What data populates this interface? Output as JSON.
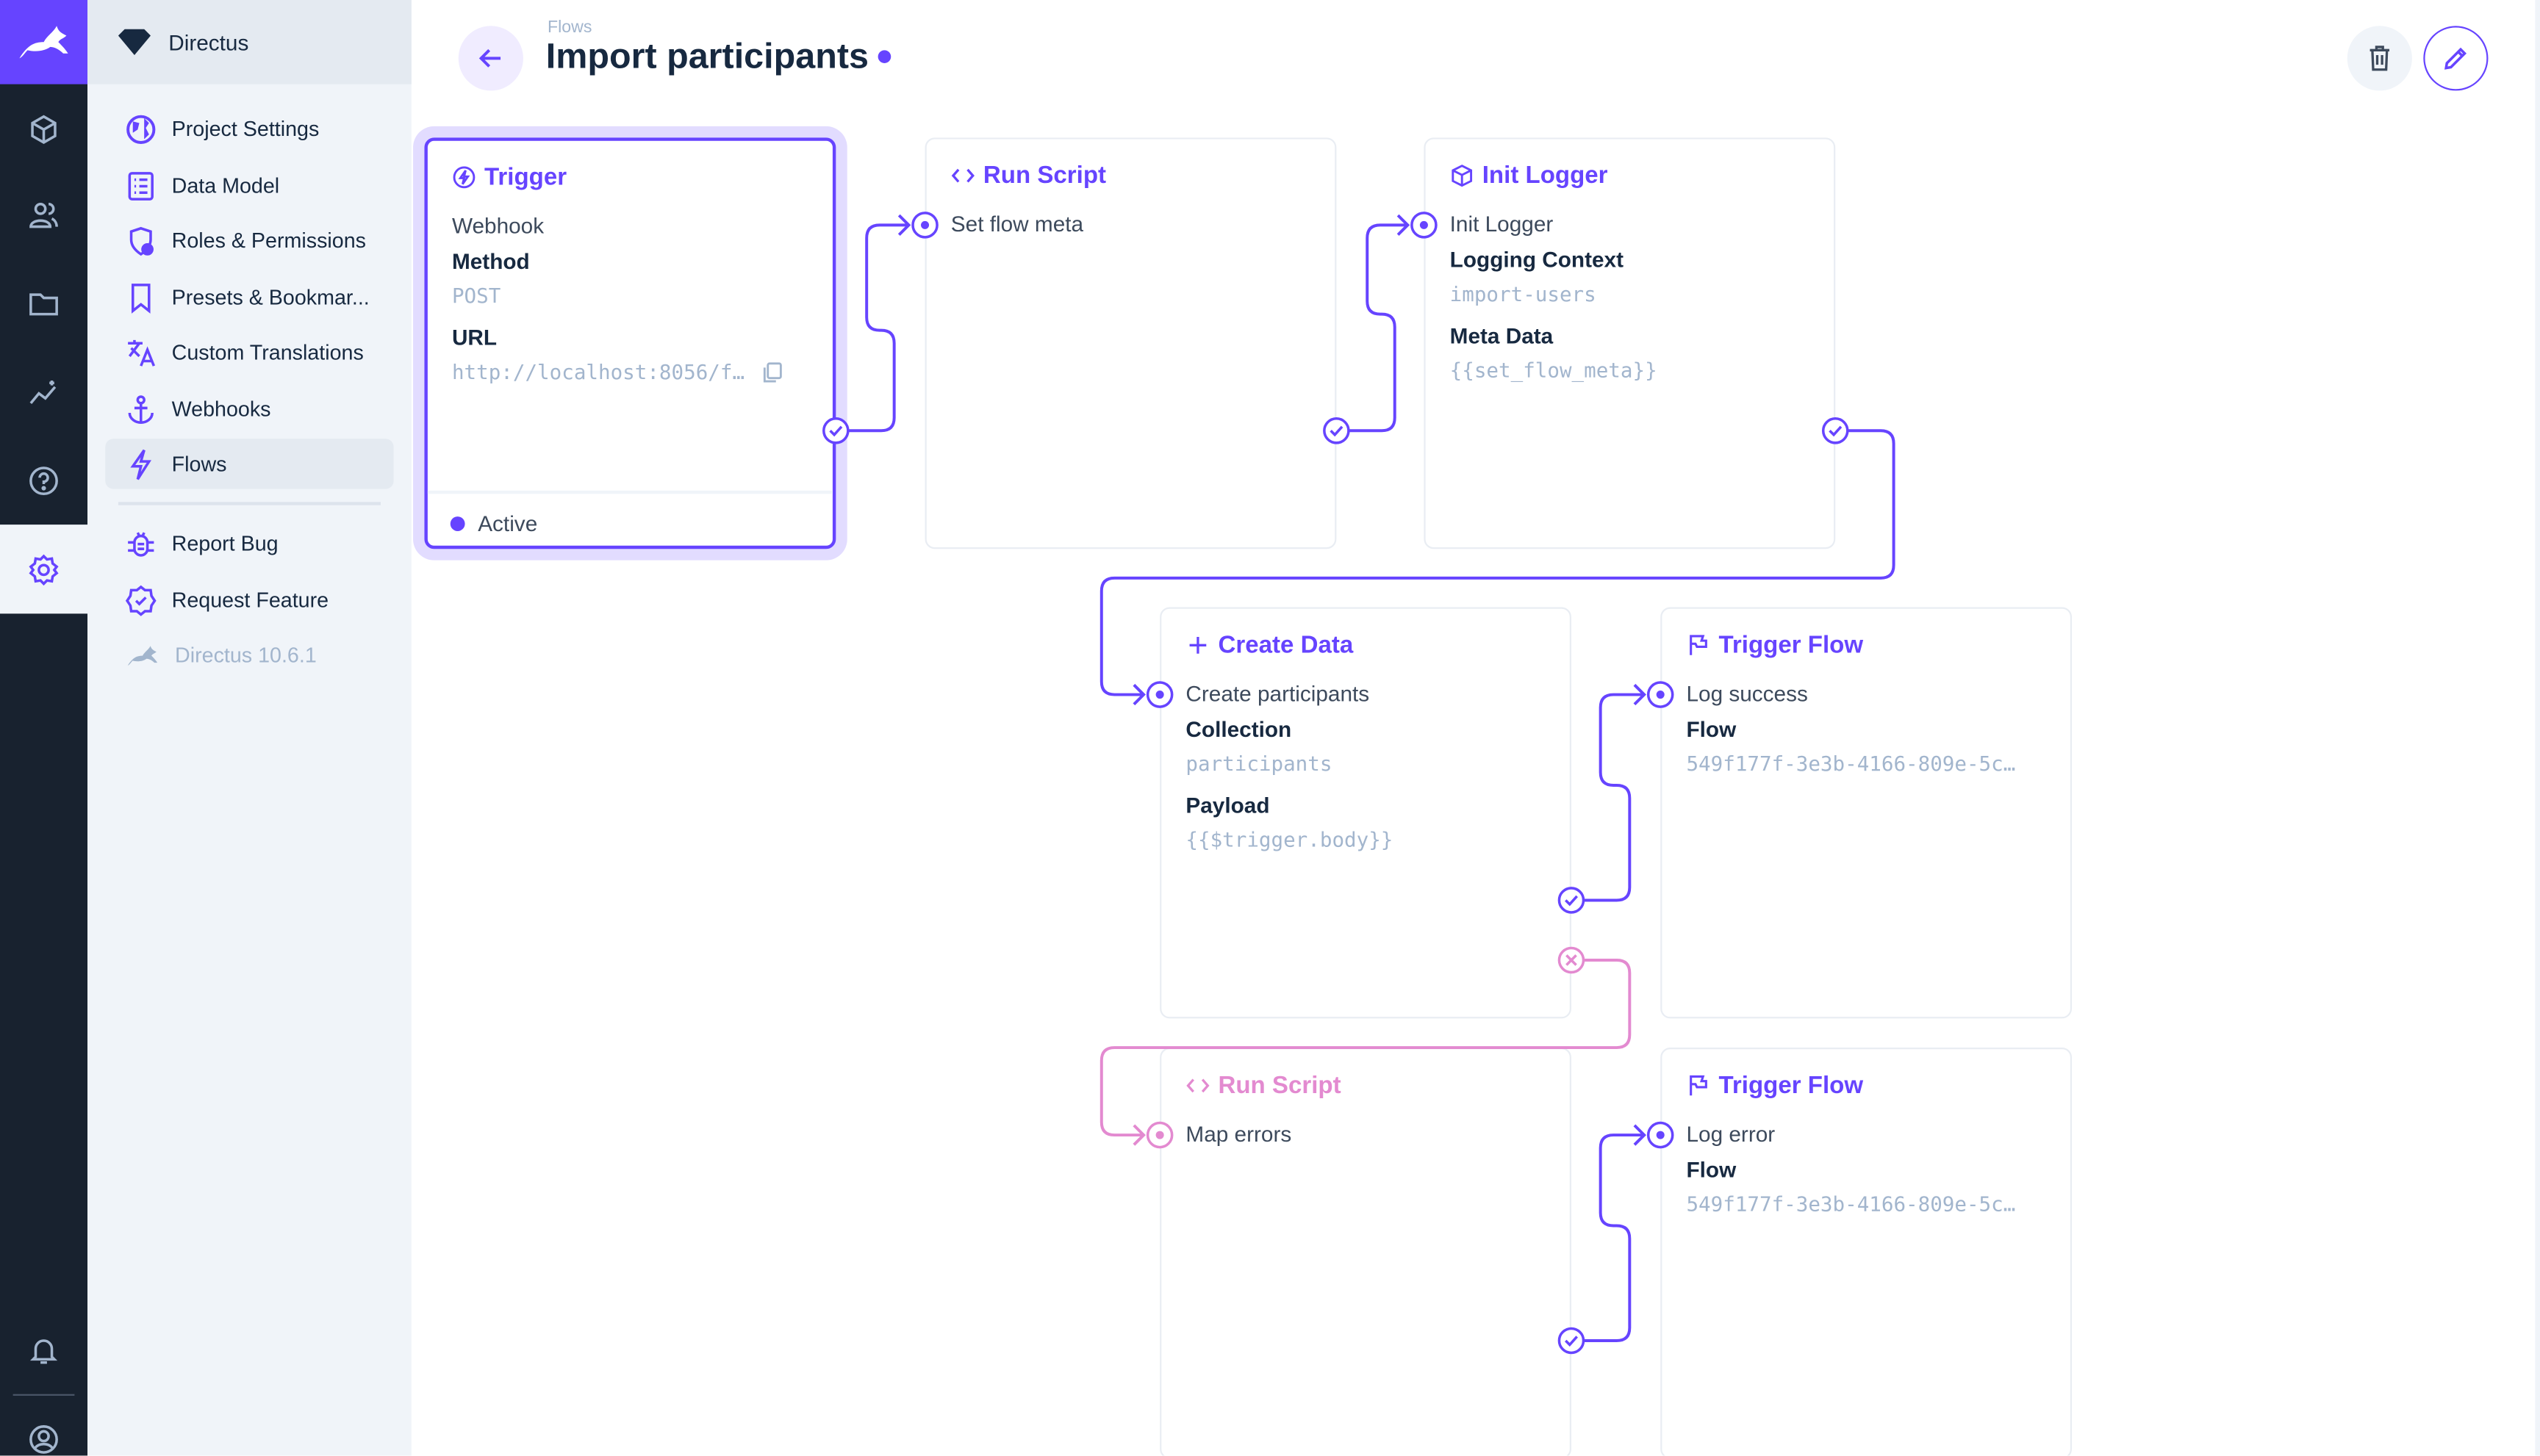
{
  "app": {
    "brand_color": "#6644ff",
    "project_name": "Directus"
  },
  "rail": {
    "icons": [
      "rabbit-logo-icon",
      "cube-icon",
      "users-icon",
      "folder-icon",
      "insights-icon",
      "help-icon",
      "settings-icon",
      "bell-icon",
      "user-avatar-icon"
    ],
    "active": "settings-icon"
  },
  "nav": {
    "items": [
      {
        "label": "Project Settings",
        "icon": "globe-icon"
      },
      {
        "label": "Data Model",
        "icon": "list-icon"
      },
      {
        "label": "Roles & Permissions",
        "icon": "shield-user-icon"
      },
      {
        "label": "Presets & Bookmar...",
        "icon": "bookmark-icon"
      },
      {
        "label": "Custom Translations",
        "icon": "translate-icon"
      },
      {
        "label": "Webhooks",
        "icon": "anchor-icon"
      },
      {
        "label": "Flows",
        "icon": "bolt-icon",
        "active": true
      }
    ],
    "secondary": [
      {
        "label": "Report Bug",
        "icon": "bug-icon"
      },
      {
        "label": "Request Feature",
        "icon": "check-badge-icon"
      },
      {
        "label": "Directus 10.6.1",
        "icon": "rabbit-logo-icon"
      }
    ]
  },
  "header": {
    "breadcrumb": "Flows",
    "title": "Import participants",
    "unsaved_dot_color": "#6644ff"
  },
  "flow": {
    "colors": {
      "resolve": "#6644ff",
      "reject": "#e38ad0"
    },
    "operations": [
      {
        "type": "Trigger",
        "icon": "bolt-circle-icon",
        "name": "Webhook",
        "label1": "Method",
        "value1": "POST",
        "label2": "URL",
        "value2": "http://localhost:8056/f…",
        "status": "Active",
        "selected": true
      },
      {
        "type": "Run Script",
        "icon": "code-icon",
        "name": "Set flow meta"
      },
      {
        "type": "Init Logger",
        "icon": "box-icon",
        "name": "Init Logger",
        "label1": "Logging Context",
        "value1": "import-users",
        "label2": "Meta Data",
        "value2": "{{set_flow_meta}}"
      },
      {
        "type": "Create Data",
        "icon": "plus-icon",
        "name": "Create participants",
        "label1": "Collection",
        "value1": "participants",
        "label2": "Payload",
        "value2": "{{$trigger.body}}"
      },
      {
        "type": "Trigger Flow",
        "icon": "flag-icon",
        "name": "Log success",
        "label1": "Flow",
        "value1": "549f177f-3e3b-4166-809e-5c…"
      },
      {
        "type": "Run Script",
        "icon": "code-icon",
        "name": "Map errors",
        "reject_path": true
      },
      {
        "type": "Trigger Flow",
        "icon": "flag-icon",
        "name": "Log error",
        "label1": "Flow",
        "value1": "549f177f-3e3b-4166-809e-5c…"
      }
    ]
  }
}
